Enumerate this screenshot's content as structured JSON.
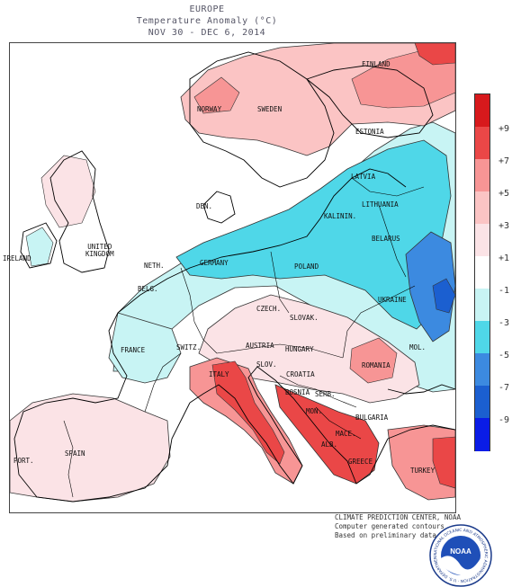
{
  "header": {
    "region": "EUROPE",
    "subtitle": "Temperature Anomaly (°C)",
    "period": "NOV 30 - DEC  6, 2014"
  },
  "legend": {
    "ticks": [
      "+9",
      "+7",
      "+5",
      "+3",
      "+1",
      "-1",
      "-3",
      "-5",
      "-7",
      "-9"
    ],
    "colors": [
      "#d7191c",
      "#ea4747",
      "#f79595",
      "#fbc4c4",
      "#fbe3e6",
      "#ffffff",
      "#c8f4f4",
      "#4fd7e8",
      "#3c8ae0",
      "#1b5fd0",
      "#0a1ce6"
    ]
  },
  "countries": [
    "FINLAND",
    "NORWAY",
    "SWEDEN",
    "ESTONIA",
    "LATVIA",
    "DEN.",
    "LITHUANIA",
    "KALININ.",
    "UNITED KINGDOM",
    "IRELAND",
    "NETH.",
    "GERMANY",
    "POLAND",
    "BELARUS",
    "BELG.",
    "CZECH.",
    "SLOVAK.",
    "UKRAINE",
    "FRANCE",
    "SWITZ.",
    "AUSTRIA",
    "HUNGARY",
    "MOL.",
    "SLOV.",
    "CROATIA",
    "ROMANIA",
    "ITALY",
    "BOSNIA",
    "SERB.",
    "MON.",
    "BULGARIA",
    "MACE.",
    "ALB.",
    "GREECE",
    "TURKEY",
    "PORT.",
    "SPAIN"
  ],
  "credits": {
    "line1": "CLIMATE PREDICTION CENTER, NOAA",
    "line2": "Computer generated contours",
    "line3": "Based on preliminary data"
  },
  "logo": {
    "text": "NOAA",
    "ring": "NATIONAL OCEANIC AND ATMOSPHERIC ADMINISTRATION · U.S. DEPARTMENT OF COMMERCE"
  }
}
